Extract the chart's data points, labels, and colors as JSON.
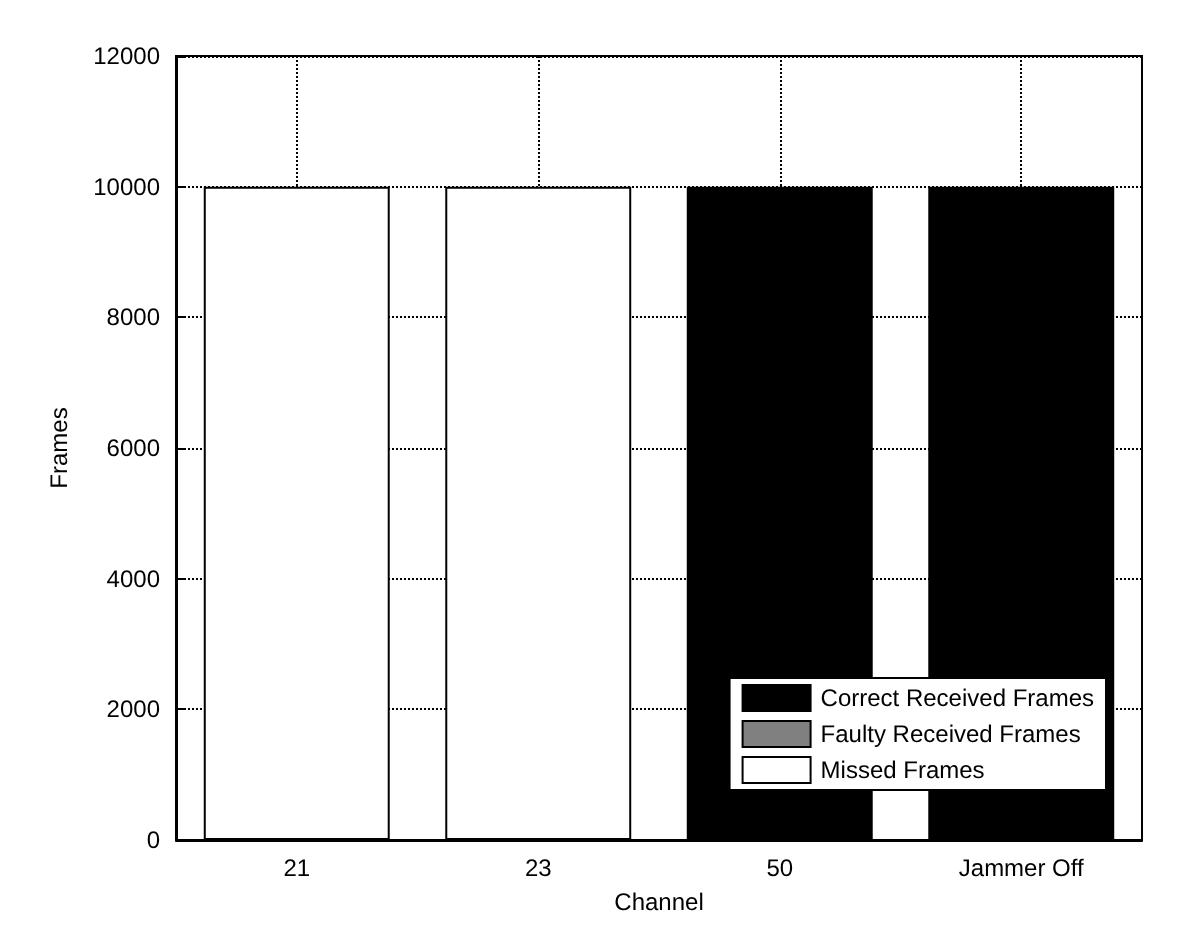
{
  "chart_data": {
    "type": "bar",
    "stacked": true,
    "xlabel": "Channel",
    "ylabel": "Frames",
    "categories": [
      "21",
      "23",
      "50",
      "Jammer Off"
    ],
    "series": [
      {
        "name": "Correct Received Frames",
        "color": "#000000",
        "values": [
          0,
          0,
          10000,
          10000
        ]
      },
      {
        "name": "Faulty Received Frames",
        "color": "#808080",
        "values": [
          0,
          0,
          0,
          0
        ]
      },
      {
        "name": "Missed Frames",
        "color": "#ffffff",
        "values": [
          10000,
          10000,
          0,
          0
        ]
      }
    ],
    "ylim": [
      0,
      12000
    ],
    "yticks": [
      0,
      2000,
      4000,
      6000,
      8000,
      10000,
      12000
    ],
    "grid": true,
    "legend": "bottom right"
  }
}
